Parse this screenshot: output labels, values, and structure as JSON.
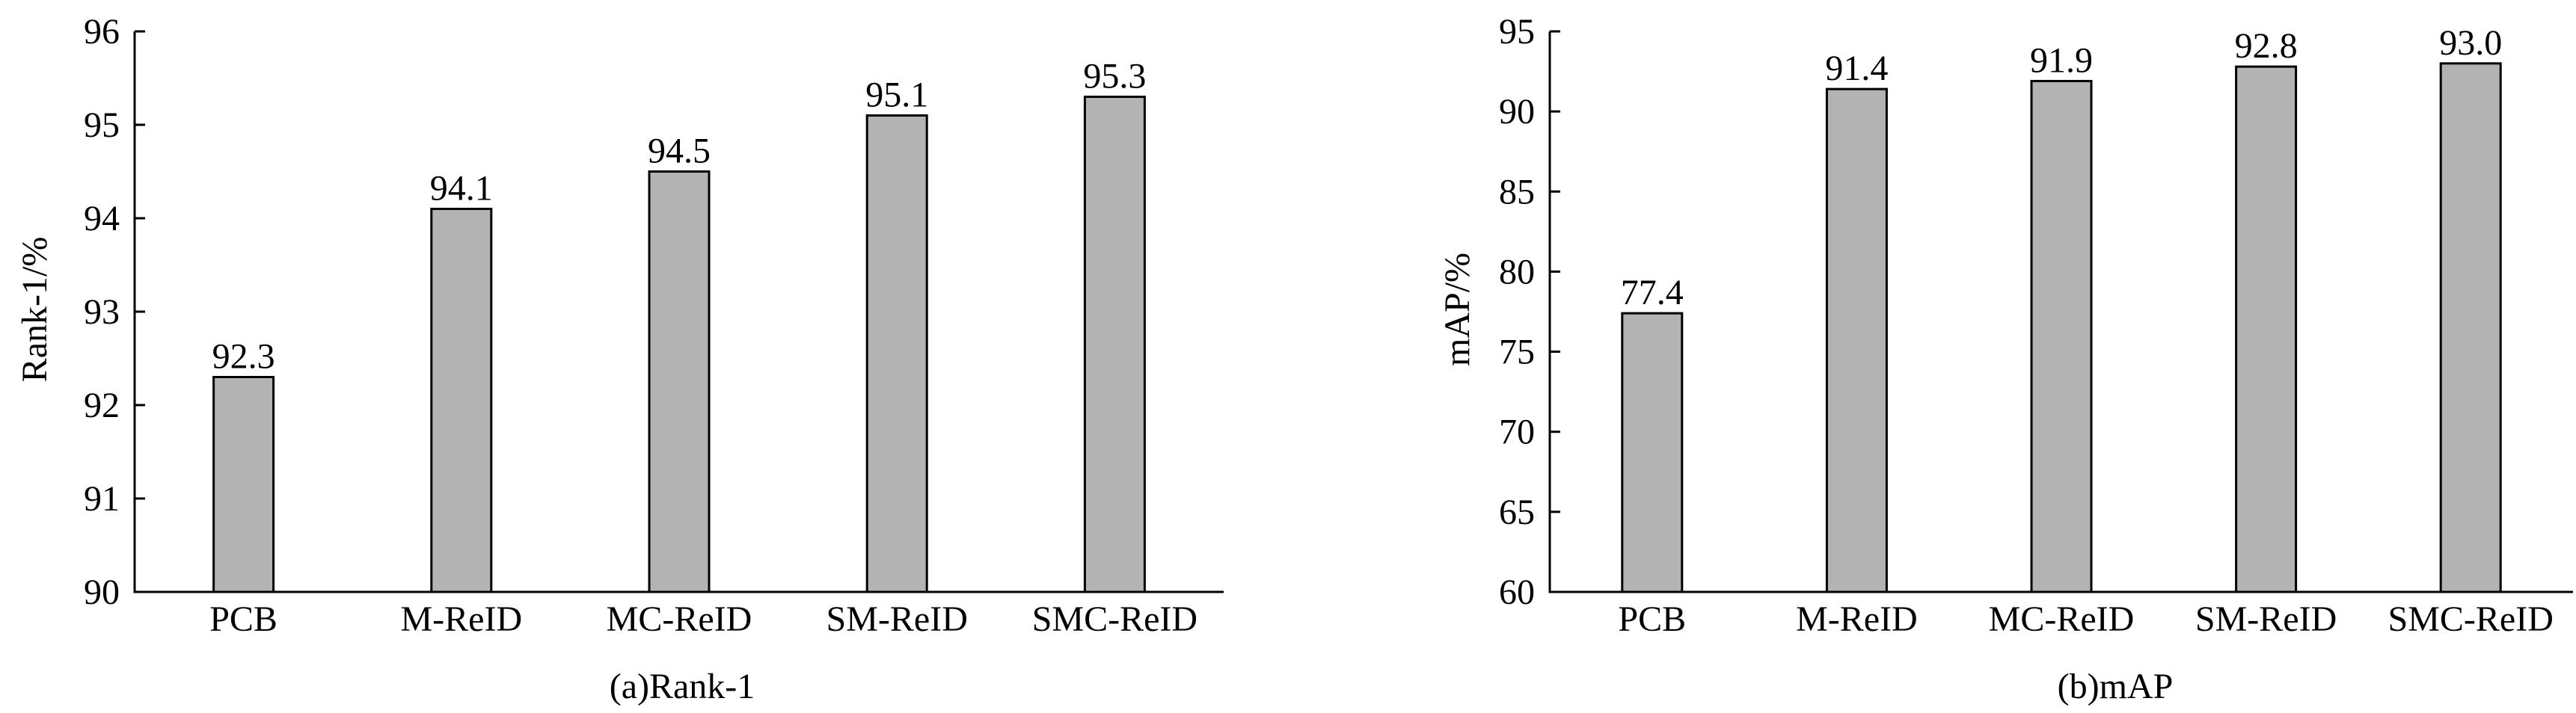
{
  "chart_data": [
    {
      "type": "bar",
      "categories": [
        "PCB",
        "M-ReID",
        "MC-ReID",
        "SM-ReID",
        "SMC-ReID"
      ],
      "values": [
        92.3,
        94.1,
        94.5,
        95.1,
        95.3
      ],
      "value_labels": [
        "92.3",
        "94.1",
        "94.5",
        "95.1",
        "95.3"
      ],
      "ylabel": "Rank-1/%",
      "caption": "(a)Rank-1",
      "ylim": [
        90,
        96
      ],
      "yticks": [
        "90",
        "91",
        "92",
        "93",
        "94",
        "95",
        "96"
      ],
      "grid": false,
      "bar_color": "#b3b3b3"
    },
    {
      "type": "bar",
      "categories": [
        "PCB",
        "M-ReID",
        "MC-ReID",
        "SM-ReID",
        "SMC-ReID"
      ],
      "values": [
        77.4,
        91.4,
        91.9,
        92.8,
        93.0
      ],
      "value_labels": [
        "77.4",
        "91.4",
        "91.9",
        "92.8",
        "93.0"
      ],
      "ylabel": "mAP/%",
      "caption": "(b)mAP",
      "ylim": [
        60,
        95
      ],
      "yticks": [
        "60",
        "65",
        "70",
        "75",
        "80",
        "85",
        "90",
        "95"
      ],
      "grid": false,
      "bar_color": "#b3b3b3"
    }
  ]
}
